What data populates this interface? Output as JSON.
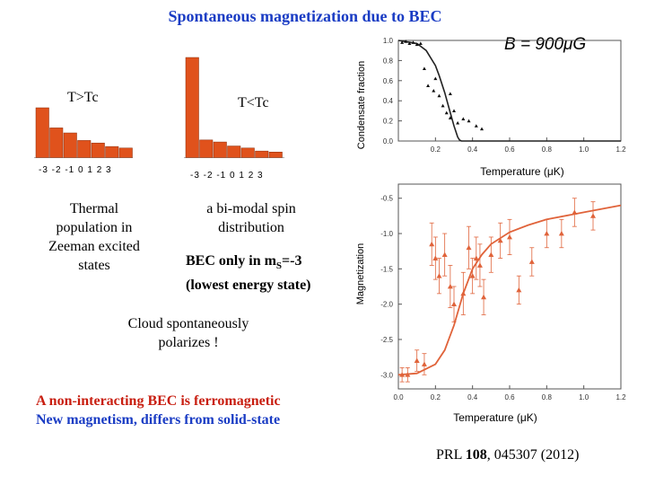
{
  "title": "Spontaneous magnetization due to BEC",
  "left_panel": {
    "label": "T>Tc",
    "ticks": "-3 -2 -1 0 1 2 3",
    "caption": [
      "Thermal",
      "population in",
      "Zeeman excited",
      "states"
    ]
  },
  "middle_panel": {
    "label": "T<Tc",
    "ticks": "-3 -2 -1 0 1 2 3",
    "caption": [
      "a bi-modal spin",
      "distribution"
    ],
    "bec_line1_pre": "BEC only in m",
    "bec_line1_sub": "S",
    "bec_line1_post": "=-3",
    "bec_line2": "(lowest energy state)"
  },
  "cloud_text": [
    "Cloud spontaneously",
    "polarizes !"
  ],
  "conclusion": {
    "line1": "A non-interacting BEC is ferromagnetic",
    "line2": "New magnetism, differs from solid-state"
  },
  "reference": {
    "prefix": "PRL ",
    "volume": "108",
    "suffix": ", 045307 (2012)"
  },
  "colors": {
    "title": "#1a3cc4",
    "bar": "#e0521c",
    "curve": "#e0633a",
    "conclusion_red": "#c81e10",
    "conclusion_blue": "#1a3cc4"
  },
  "chart_data": [
    {
      "type": "bar",
      "title": "T>Tc",
      "categories": [
        "-3",
        "-2",
        "-1",
        "0",
        "1",
        "2",
        "3"
      ],
      "values": [
        1.0,
        0.6,
        0.5,
        0.35,
        0.3,
        0.23,
        0.2
      ]
    },
    {
      "type": "bar",
      "title": "T<Tc",
      "categories": [
        "-3",
        "-2",
        "-1",
        "0",
        "1",
        "2",
        "3"
      ],
      "values": [
        1.0,
        0.18,
        0.16,
        0.12,
        0.1,
        0.07,
        0.06
      ]
    },
    {
      "type": "scatter",
      "title": "B = 900 μG",
      "xlabel": "Temperature (μK)",
      "ylabel": "Condensate fraction",
      "xlim": [
        0,
        1.2
      ],
      "ylim": [
        0,
        1.0
      ],
      "xticks": [
        "0.2",
        "0.4",
        "0.6",
        "0.8",
        "1.0",
        "1.2"
      ],
      "yticks": [
        "0.0",
        "0.2",
        "0.4",
        "0.6",
        "0.8",
        "1.0"
      ],
      "points": {
        "x": [
          0.02,
          0.04,
          0.06,
          0.08,
          0.1,
          0.12,
          0.14,
          0.16,
          0.19,
          0.2,
          0.22,
          0.24,
          0.26,
          0.28,
          0.28,
          0.3,
          0.32,
          0.35,
          0.38,
          0.42,
          0.45
        ],
        "y": [
          0.98,
          0.99,
          0.97,
          0.98,
          0.96,
          0.97,
          0.72,
          0.55,
          0.5,
          0.62,
          0.45,
          0.35,
          0.28,
          0.47,
          0.23,
          0.3,
          0.18,
          0.22,
          0.2,
          0.15,
          0.12
        ]
      },
      "curve": {
        "x": [
          0,
          0.1,
          0.15,
          0.2,
          0.22,
          0.25,
          0.28,
          0.3,
          0.32,
          0.33,
          0.34,
          0.5,
          1.2
        ],
        "y": [
          1.0,
          0.97,
          0.9,
          0.75,
          0.65,
          0.48,
          0.28,
          0.15,
          0.04,
          0.01,
          0.0,
          0.0,
          0.0
        ]
      }
    },
    {
      "type": "scatter",
      "xlabel": "Temperature (μK)",
      "ylabel": "Magnetization",
      "xlim": [
        0,
        1.2
      ],
      "ylim": [
        -3.2,
        -0.3
      ],
      "xticks": [
        "0.0",
        "0.2",
        "0.4",
        "0.6",
        "0.8",
        "1.0",
        "1.2"
      ],
      "yticks": [
        "-0.5",
        "-1.0",
        "-1.5",
        "-2.0",
        "-2.5",
        "-3.0"
      ],
      "points": {
        "x": [
          0.02,
          0.05,
          0.1,
          0.14,
          0.18,
          0.2,
          0.22,
          0.25,
          0.28,
          0.3,
          0.35,
          0.38,
          0.4,
          0.42,
          0.44,
          0.46,
          0.5,
          0.55,
          0.6,
          0.65,
          0.72,
          0.8,
          0.88,
          0.95,
          1.05
        ],
        "y": [
          -3.0,
          -3.0,
          -2.8,
          -2.85,
          -1.15,
          -1.35,
          -1.6,
          -1.3,
          -1.75,
          -2.0,
          -1.85,
          -1.2,
          -1.6,
          -1.35,
          -1.45,
          -1.9,
          -1.3,
          -1.1,
          -1.05,
          -1.8,
          -1.4,
          -1.0,
          -1.0,
          -0.7,
          -0.75
        ],
        "err": [
          0.1,
          0.1,
          0.15,
          0.15,
          0.3,
          0.3,
          0.25,
          0.3,
          0.3,
          0.25,
          0.3,
          0.3,
          0.25,
          0.3,
          0.3,
          0.25,
          0.25,
          0.25,
          0.25,
          0.2,
          0.2,
          0.2,
          0.2,
          0.2,
          0.2
        ]
      },
      "curve": {
        "x": [
          0,
          0.1,
          0.2,
          0.25,
          0.3,
          0.35,
          0.4,
          0.45,
          0.5,
          0.6,
          0.7,
          0.8,
          1.0,
          1.2
        ],
        "y": [
          -3.0,
          -2.98,
          -2.85,
          -2.65,
          -2.3,
          -1.85,
          -1.5,
          -1.3,
          -1.15,
          -0.98,
          -0.88,
          -0.8,
          -0.7,
          -0.6
        ]
      }
    }
  ]
}
